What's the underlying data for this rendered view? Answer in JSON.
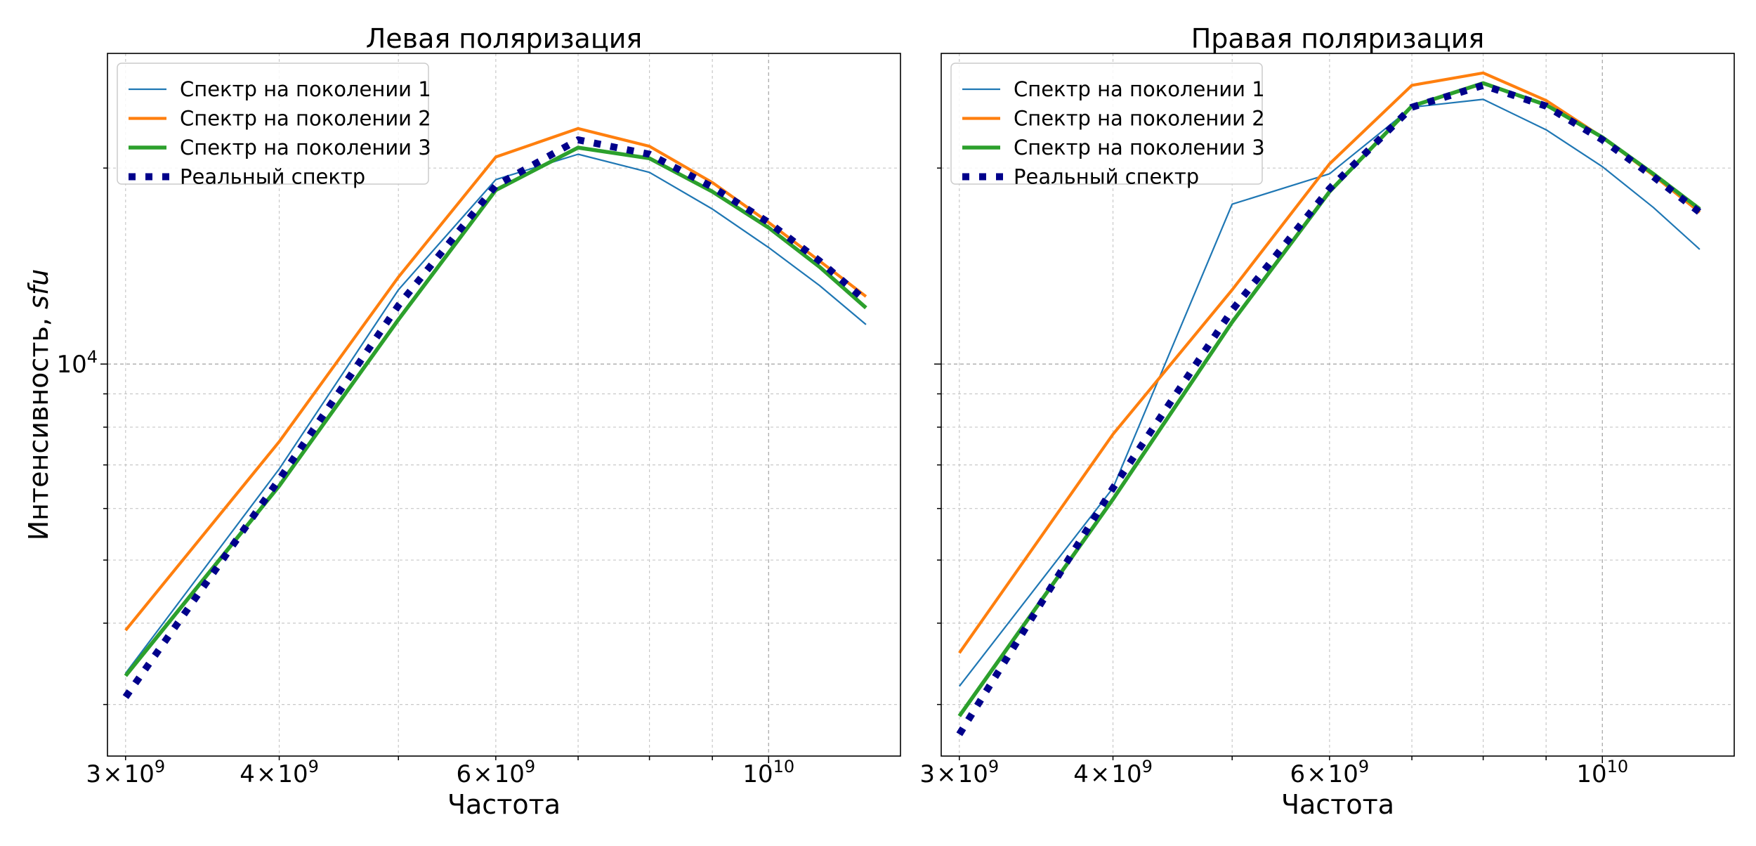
{
  "ylabel": "Интенсивность, sfu",
  "ylabel_main": "Интенсивность, ",
  "ylabel_unit": "sfu",
  "y_major_tick": "10^4",
  "y_major_tick_base": "10",
  "y_major_tick_exp": "4",
  "colors": {
    "gen1": "#1f77b4",
    "gen2": "#ff7f0e",
    "gen3": "#2ca02c",
    "real": "#00008b"
  },
  "chart_data": [
    {
      "type": "line",
      "title": "Левая поляризация",
      "xlabel": "Частота",
      "ylabel": "Интенсивность, sfu",
      "x_scale": "log",
      "y_scale": "log",
      "xlim": [
        2900000000.0,
        12800000000.0
      ],
      "ylim": [
        2500,
        30000
      ],
      "grid": true,
      "legend_placement": "top-left",
      "x_tick_labels": [
        {
          "value": 3000000000.0,
          "mant": "3",
          "base": "10",
          "exp": "9"
        },
        {
          "value": 4000000000.0,
          "mant": "4",
          "base": "10",
          "exp": "9"
        },
        {
          "value": 6000000000.0,
          "mant": "6",
          "base": "10",
          "exp": "9"
        },
        {
          "value": 10000000000.0,
          "mant": "",
          "base": "10",
          "exp": "10"
        }
      ],
      "x": [
        3000000000.0,
        4000000000.0,
        5000000000.0,
        6000000000.0,
        7000000000.0,
        8000000000.0,
        9000000000.0,
        10000000000.0,
        11000000000.0,
        12000000000.0
      ],
      "series": [
        {
          "name": "Спектр на поколении 1",
          "color_key": "gen1",
          "values": [
            3350,
            6900,
            13000,
            19200,
            21000,
            19700,
            17300,
            15100,
            13200,
            11500
          ]
        },
        {
          "name": "Спектр на поколении 2",
          "color_key": "gen2",
          "values": [
            3900,
            7600,
            13600,
            20800,
            23000,
            21600,
            19000,
            16500,
            14400,
            12700
          ]
        },
        {
          "name": "Спектр на поколении 3",
          "color_key": "gen3",
          "values": [
            3320,
            6500,
            11700,
            18500,
            21500,
            20700,
            18400,
            16200,
            14100,
            12200
          ]
        },
        {
          "name": "Реальный спектр",
          "color_key": "real",
          "values": [
            3080,
            6650,
            12300,
            18800,
            22100,
            21000,
            18700,
            16500,
            14400,
            12500
          ]
        }
      ]
    },
    {
      "type": "line",
      "title": "Правая поляризация",
      "xlabel": "Частота",
      "ylabel": "",
      "x_scale": "log",
      "y_scale": "log",
      "xlim": [
        2900000000.0,
        12800000000.0
      ],
      "ylim": [
        2500,
        30000
      ],
      "grid": true,
      "legend_placement": "top-left",
      "x_tick_labels": [
        {
          "value": 3000000000.0,
          "mant": "3",
          "base": "10",
          "exp": "9"
        },
        {
          "value": 4000000000.0,
          "mant": "4",
          "base": "10",
          "exp": "9"
        },
        {
          "value": 6000000000.0,
          "mant": "6",
          "base": "10",
          "exp": "9"
        },
        {
          "value": 10000000000.0,
          "mant": "",
          "base": "10",
          "exp": "10"
        }
      ],
      "x": [
        3000000000.0,
        4000000000.0,
        5000000000.0,
        6000000000.0,
        7000000000.0,
        8000000000.0,
        9000000000.0,
        10000000000.0,
        11000000000.0,
        12000000000.0
      ],
      "series": [
        {
          "name": "Спектр на поколении 1",
          "color_key": "gen1",
          "values": [
            3200,
            6450,
            17600,
            19600,
            24800,
            25500,
            22900,
            20100,
            17400,
            15000
          ]
        },
        {
          "name": "Спектр на поколении 2",
          "color_key": "gen2",
          "values": [
            3600,
            7800,
            13000,
            20300,
            26800,
            28000,
            25400,
            22300,
            19500,
            17100
          ]
        },
        {
          "name": "Спектр на поколении 3",
          "color_key": "gen3",
          "values": [
            2880,
            6200,
            11600,
            18400,
            24900,
            27000,
            25000,
            22300,
            19600,
            17300
          ]
        },
        {
          "name": "Реальный спектр",
          "color_key": "real",
          "values": [
            2700,
            6450,
            12100,
            18600,
            24800,
            26800,
            24900,
            22100,
            19400,
            17100
          ]
        }
      ]
    }
  ]
}
